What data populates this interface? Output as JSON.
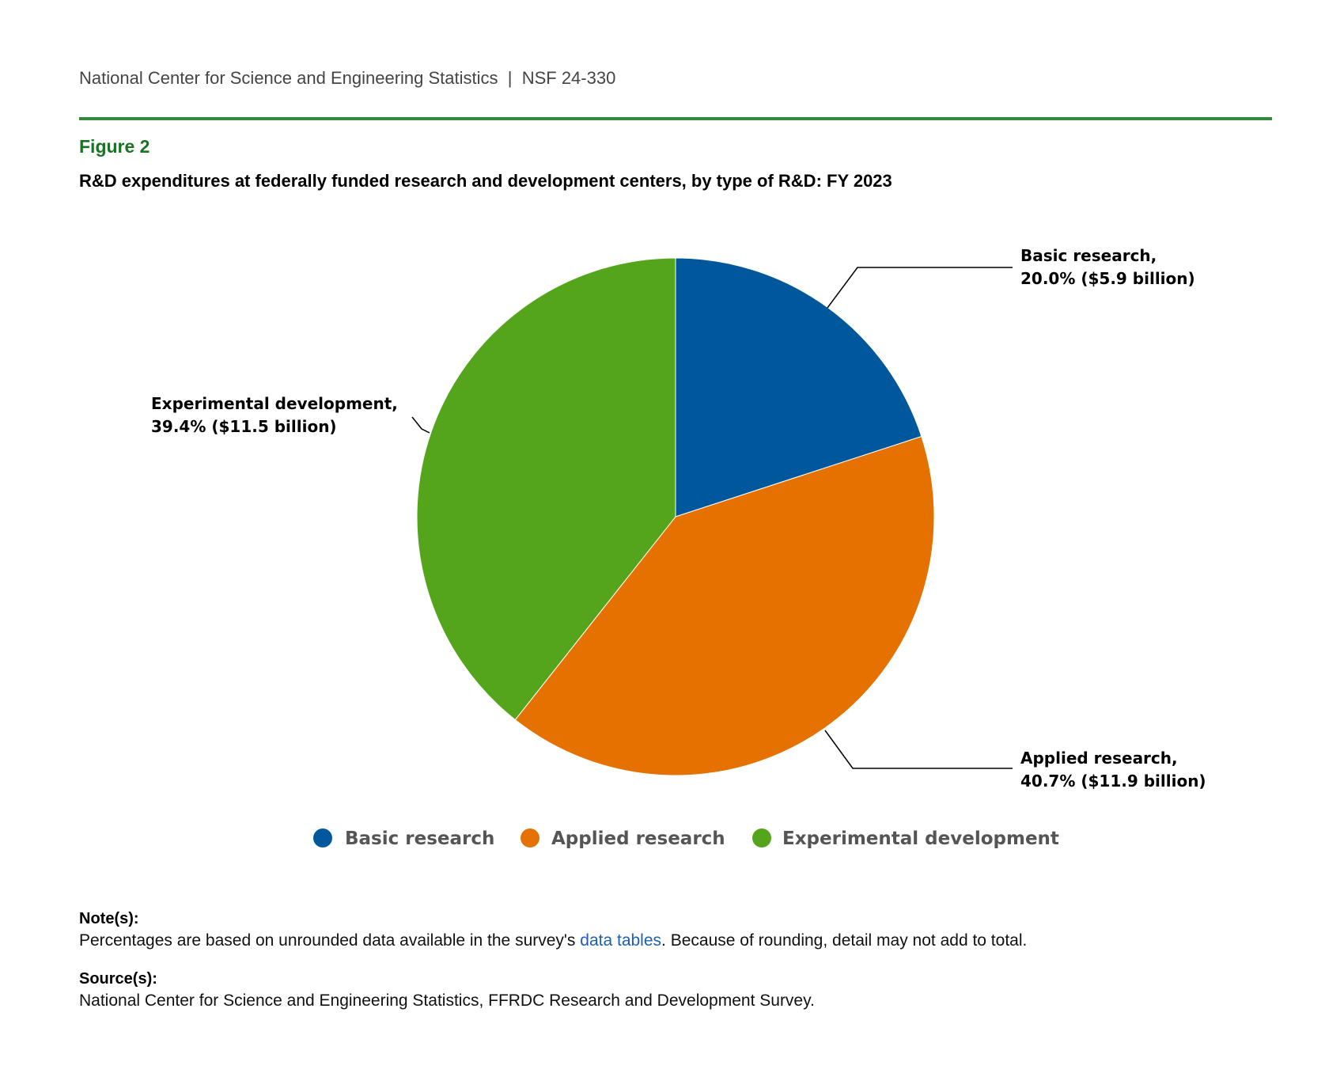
{
  "header": {
    "org": "National Center for Science and Engineering Statistics",
    "separator": "|",
    "report": "NSF 24-330"
  },
  "figure_label": "Figure 2",
  "chart_data": {
    "type": "pie",
    "title": "R&D expenditures at federally funded research and development centers, by type of R&D: FY 2023",
    "slices": [
      {
        "name": "Basic research",
        "percent": 20.0,
        "value_billion": 5.9,
        "label_line1": "Basic research,",
        "label_line2": "20.0% ($5.9 billion)",
        "color": "#00589c"
      },
      {
        "name": "Applied research",
        "percent": 40.7,
        "value_billion": 11.9,
        "label_line1": "Applied research,",
        "label_line2": "40.7% ($11.9 billion)",
        "color": "#e57200"
      },
      {
        "name": "Experimental development",
        "percent": 39.4,
        "value_billion": 11.5,
        "label_line1": "Experimental development,",
        "label_line2": "39.4% ($11.5 billion)",
        "color": "#55a51c"
      }
    ],
    "legend": {
      "placement": "bottom",
      "entries": [
        "Basic research",
        "Applied research",
        "Experimental development"
      ]
    }
  },
  "notes": {
    "heading": "Note(s):",
    "text_before": "Percentages are based on unrounded data available in the survey's ",
    "link": "data tables",
    "text_after": ". Because of rounding, detail may not add to total."
  },
  "source": {
    "heading": "Source(s):",
    "text": "National Center for Science and Engineering Statistics, FFRDC Research and Development Survey."
  }
}
